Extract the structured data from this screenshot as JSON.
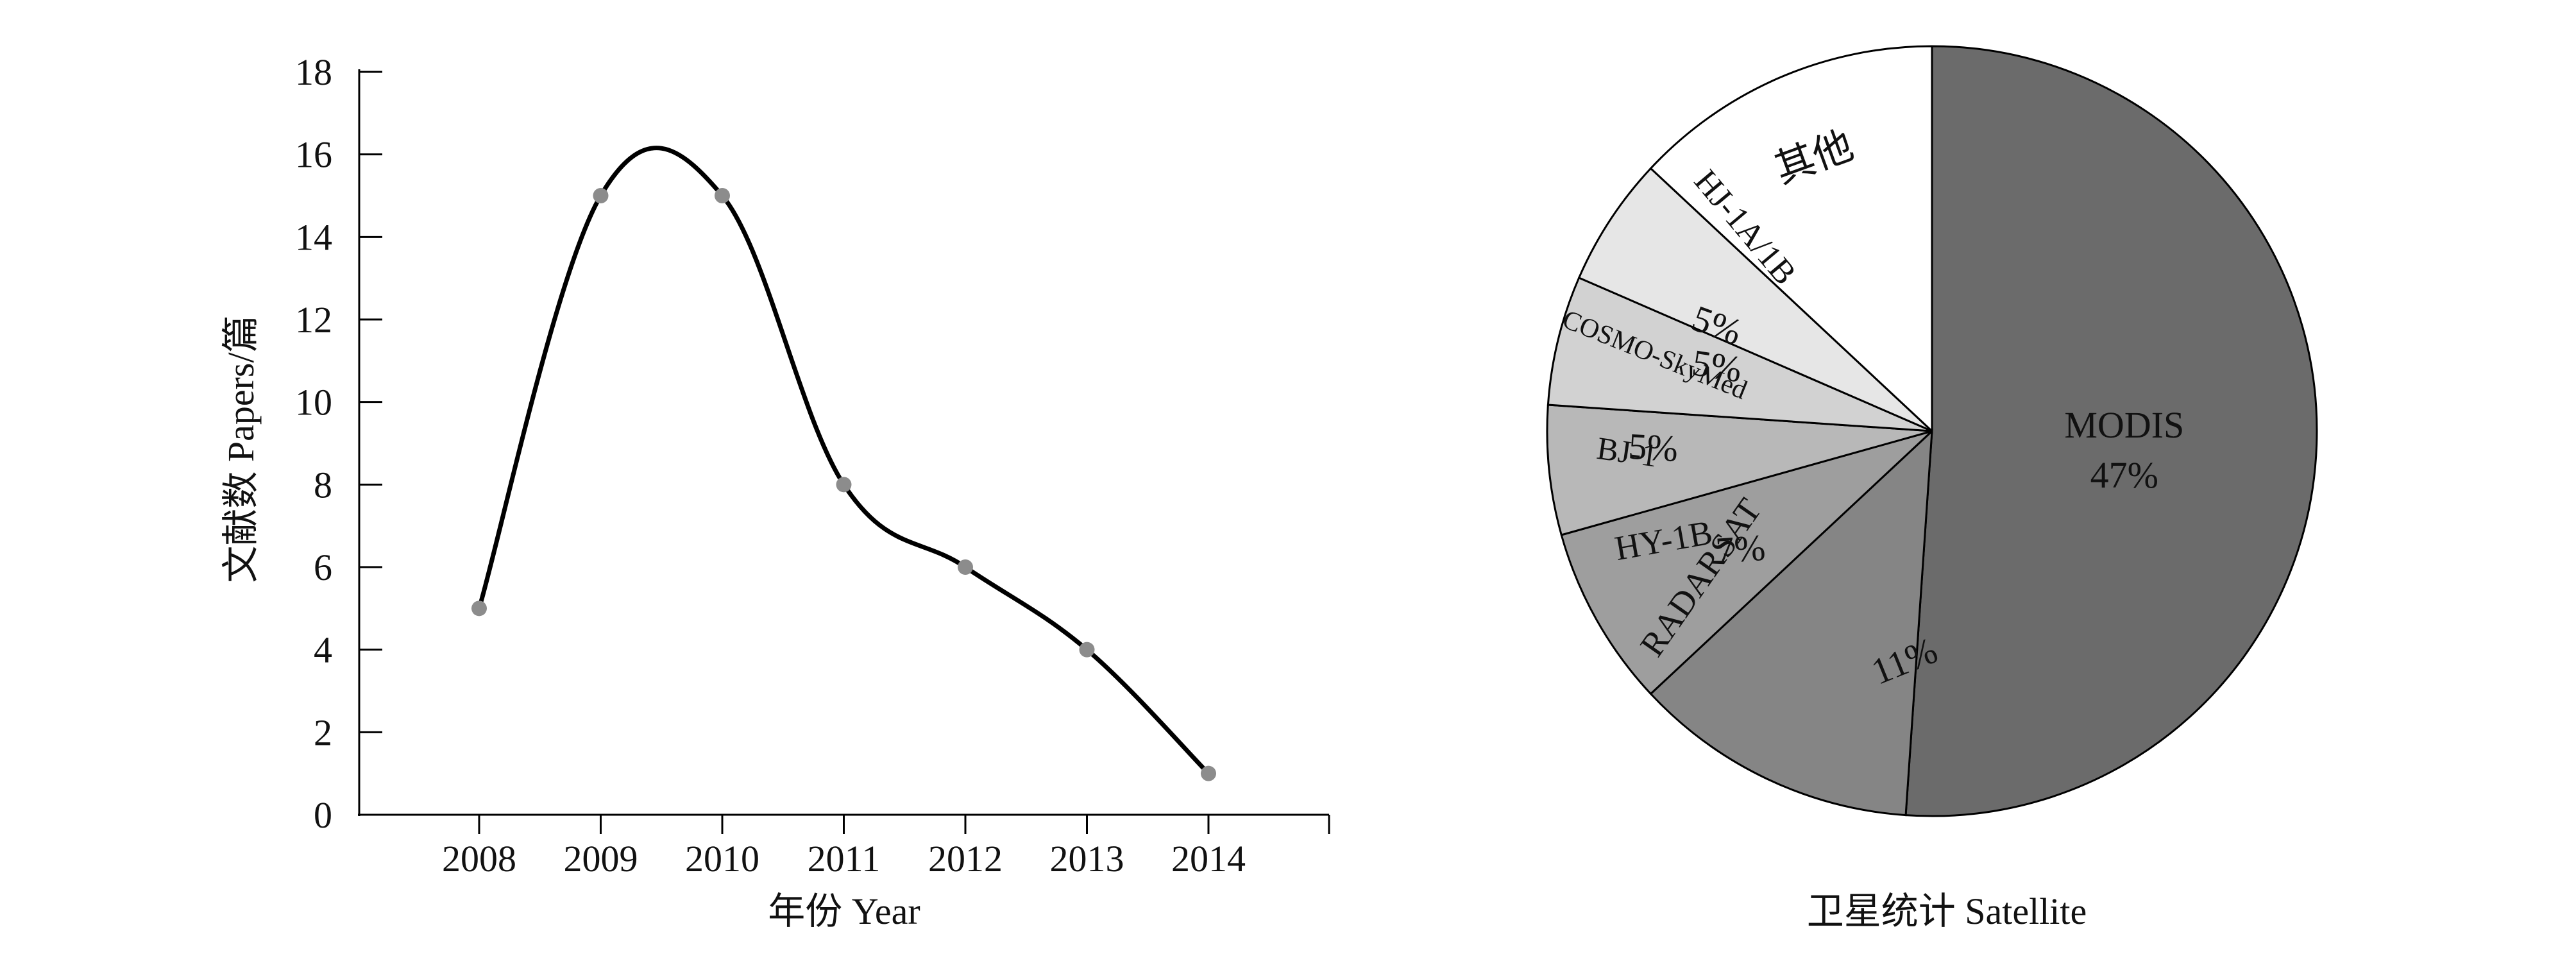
{
  "chart_data": [
    {
      "type": "line",
      "xlabel": "年份 Year",
      "ylabel": "文献数 Papers/篇",
      "x": [
        2008,
        2009,
        2010,
        2011,
        2012,
        2013,
        2014
      ],
      "series": [
        {
          "values": [
            5,
            15,
            15,
            8,
            6,
            4,
            1
          ]
        }
      ],
      "yticks": [
        0,
        2,
        4,
        6,
        8,
        10,
        12,
        14,
        16,
        18
      ],
      "ylim": [
        0,
        18
      ],
      "smooth": true,
      "grid": false,
      "colors": {
        "line": "#000000",
        "marker": "#8c8c8c"
      }
    },
    {
      "type": "pie",
      "xlabel": "卫星统计 Satellite",
      "slices": [
        {
          "label": "MODIS",
          "pct_label": "47%",
          "value": 47,
          "color": "#6b6b6b"
        },
        {
          "label": "RADARSAT",
          "pct_label": "11%",
          "value": 11,
          "color": "#858585"
        },
        {
          "label": "HY-1B",
          "pct_label": "7%",
          "value": 7,
          "color": "#9e9e9e"
        },
        {
          "label": "BJ-1",
          "pct_label": "5%",
          "value": 5,
          "color": "#b8b8b8"
        },
        {
          "label": "COSMO-SkyMed",
          "pct_label": "5%",
          "value": 5,
          "color": "#d2d2d2"
        },
        {
          "label": "HJ-1A/1B",
          "pct_label": "5%",
          "value": 5,
          "color": "#e6e6e6"
        },
        {
          "label": "其他",
          "pct_label": "",
          "value": 12,
          "color": "#ffffff"
        }
      ]
    }
  ]
}
